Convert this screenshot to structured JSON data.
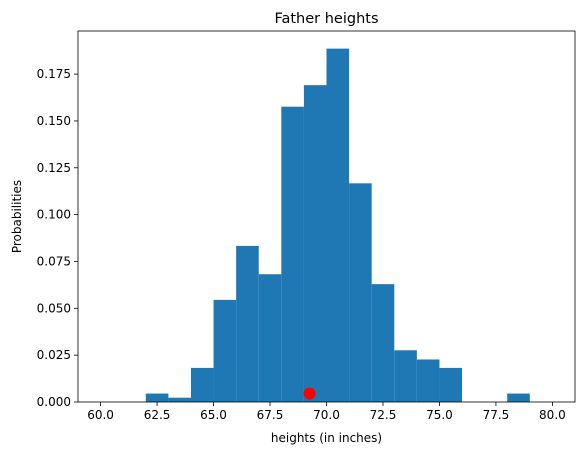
{
  "chart_data": {
    "type": "bar",
    "title": "Father heights",
    "xlabel": "heights (in inches)",
    "ylabel": "Probabilities",
    "xlim": [
      59.0,
      81.0
    ],
    "ylim": [
      0.0,
      0.198
    ],
    "xticks": [
      60.0,
      62.5,
      65.0,
      67.5,
      70.0,
      72.5,
      75.0,
      77.5,
      80.0
    ],
    "xtick_labels": [
      "60.0",
      "62.5",
      "65.0",
      "67.5",
      "70.0",
      "72.5",
      "75.0",
      "77.5",
      "80.0"
    ],
    "yticks": [
      0.0,
      0.025,
      0.05,
      0.075,
      0.1,
      0.125,
      0.15,
      0.175
    ],
    "ytick_labels": [
      "0.000",
      "0.025",
      "0.050",
      "0.075",
      "0.100",
      "0.125",
      "0.150",
      "0.175"
    ],
    "grid": false,
    "bar_color": "#1f77b4",
    "bins": [
      {
        "x0": 60,
        "x1": 61,
        "value": 0.0
      },
      {
        "x0": 61,
        "x1": 62,
        "value": 0.0
      },
      {
        "x0": 62,
        "x1": 63,
        "value": 0.0045
      },
      {
        "x0": 63,
        "x1": 64,
        "value": 0.0023
      },
      {
        "x0": 64,
        "x1": 65,
        "value": 0.0182
      },
      {
        "x0": 65,
        "x1": 66,
        "value": 0.0545
      },
      {
        "x0": 66,
        "x1": 67,
        "value": 0.0833
      },
      {
        "x0": 67,
        "x1": 68,
        "value": 0.0682
      },
      {
        "x0": 68,
        "x1": 69,
        "value": 0.1576
      },
      {
        "x0": 69,
        "x1": 70,
        "value": 0.1691
      },
      {
        "x0": 70,
        "x1": 71,
        "value": 0.1886
      },
      {
        "x0": 71,
        "x1": 72,
        "value": 0.1167
      },
      {
        "x0": 72,
        "x1": 73,
        "value": 0.0629
      },
      {
        "x0": 73,
        "x1": 74,
        "value": 0.0276
      },
      {
        "x0": 74,
        "x1": 75,
        "value": 0.0227
      },
      {
        "x0": 75,
        "x1": 76,
        "value": 0.0182
      },
      {
        "x0": 76,
        "x1": 77,
        "value": 0.0
      },
      {
        "x0": 77,
        "x1": 78,
        "value": 0.0
      },
      {
        "x0": 78,
        "x1": 79,
        "value": 0.0045
      },
      {
        "x0": 79,
        "x1": 80,
        "value": 0.0
      }
    ],
    "marker": {
      "x": 69.25,
      "y": 0.0045,
      "color": "#ff0000"
    }
  }
}
